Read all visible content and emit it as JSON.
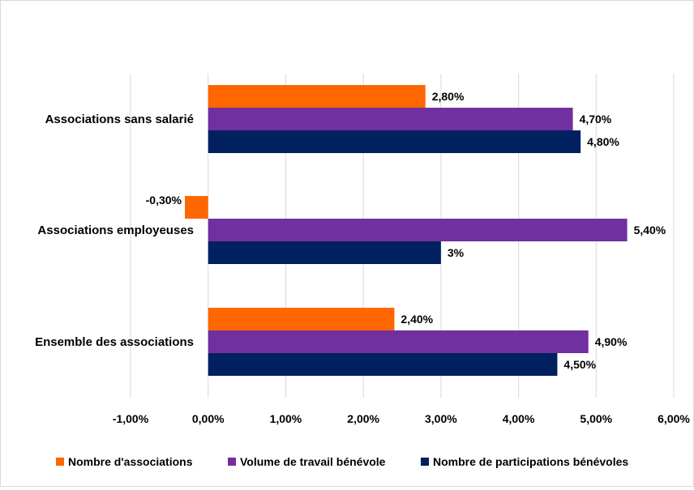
{
  "chart_data": {
    "type": "bar",
    "orientation": "horizontal",
    "categories": [
      "Associations sans salarié",
      "Associations employeuses",
      "Ensemble des associations"
    ],
    "series": [
      {
        "name": "Nombre d'associations",
        "color": "#ff6600",
        "values": [
          2.8,
          -0.3,
          2.4
        ],
        "labels": [
          "2,80%",
          "-0,30%",
          "2,40%"
        ]
      },
      {
        "name": "Volume de travail bénévole",
        "color": "#7030a0",
        "values": [
          4.7,
          5.4,
          4.9
        ],
        "labels": [
          "4,70%",
          "5,40%",
          "4,90%"
        ]
      },
      {
        "name": "Nombre de participations bénévoles",
        "color": "#002060",
        "values": [
          4.8,
          3.0,
          4.5
        ],
        "labels": [
          "4,80%",
          "3%",
          "4,50%"
        ]
      }
    ],
    "xlim": [
      -1,
      6
    ],
    "xticks": [
      -1,
      0,
      1,
      2,
      3,
      4,
      5,
      6
    ],
    "xtick_labels": [
      "-1,00%",
      "0,00%",
      "1,00%",
      "2,00%",
      "3,00%",
      "4,00%",
      "5,00%",
      "6,00%"
    ],
    "grid": true,
    "legend": "bottom"
  }
}
